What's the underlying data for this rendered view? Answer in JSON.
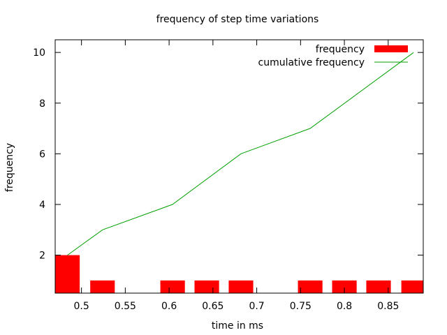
{
  "chart_data": {
    "type": "bar",
    "title": "frequency of step time variations",
    "xlabel": "time in ms",
    "ylabel": "frequency",
    "xlim": [
      0.47,
      0.89
    ],
    "ylim": [
      0.5,
      10.5
    ],
    "xticks": [
      0.5,
      0.55,
      0.6,
      0.65,
      0.7,
      0.75,
      0.8,
      0.85
    ],
    "xtick_labels": [
      "0.5",
      "0.55",
      "0.6",
      "0.65",
      "0.7",
      "0.75",
      "0.8",
      "0.85"
    ],
    "yticks": [
      2,
      4,
      6,
      8,
      10
    ],
    "ytick_labels": [
      "2",
      "4",
      "6",
      "8",
      "10"
    ],
    "bar_width": 0.028,
    "legend_position": "top-right",
    "grid": false,
    "series": [
      {
        "name": "frequency",
        "type": "bar",
        "color": "#ff0000",
        "x": [
          0.484,
          0.524,
          0.604,
          0.643,
          0.682,
          0.761,
          0.8,
          0.839,
          0.879
        ],
        "values": [
          2,
          1,
          1,
          1,
          1,
          1,
          1,
          1,
          1
        ]
      },
      {
        "name": "cumulative frequency",
        "type": "line",
        "color": "#00a000",
        "x": [
          0.484,
          0.524,
          0.604,
          0.682,
          0.761,
          0.879
        ],
        "values": [
          2,
          3,
          4,
          6,
          7,
          10
        ]
      }
    ]
  }
}
